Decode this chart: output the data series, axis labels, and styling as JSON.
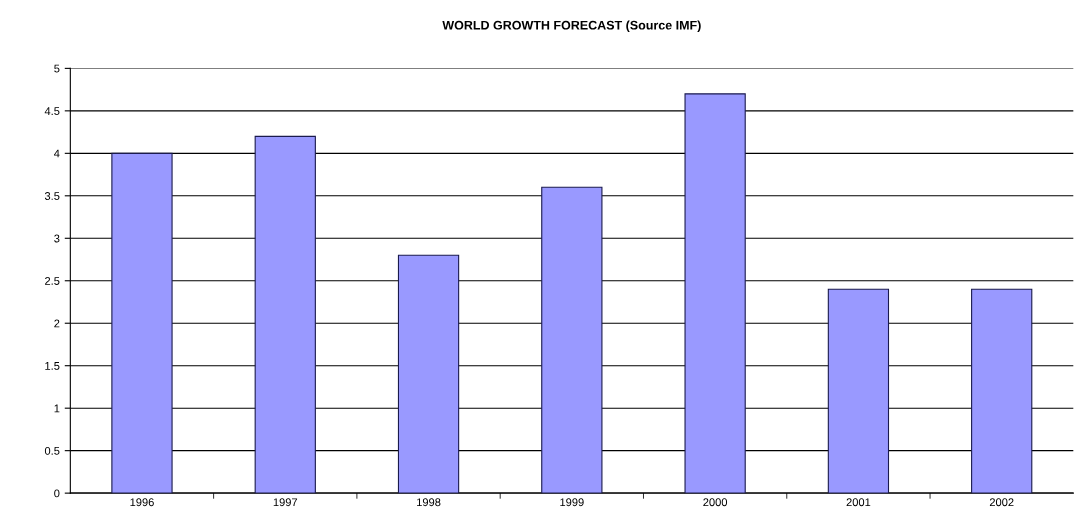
{
  "chart_data": {
    "type": "bar",
    "title": "WORLD GROWTH FORECAST (Source IMF)",
    "categories": [
      "1996",
      "1997",
      "1998",
      "1999",
      "2000",
      "2001",
      "2002"
    ],
    "values": [
      4.0,
      4.2,
      2.8,
      3.6,
      4.7,
      2.4,
      2.4
    ],
    "color": "#9999ff",
    "ylim": [
      0,
      5
    ],
    "yticks": [
      0,
      0.5,
      1,
      1.5,
      2,
      2.5,
      3,
      3.5,
      4,
      4.5,
      5
    ],
    "grid": "y",
    "legend": false
  }
}
